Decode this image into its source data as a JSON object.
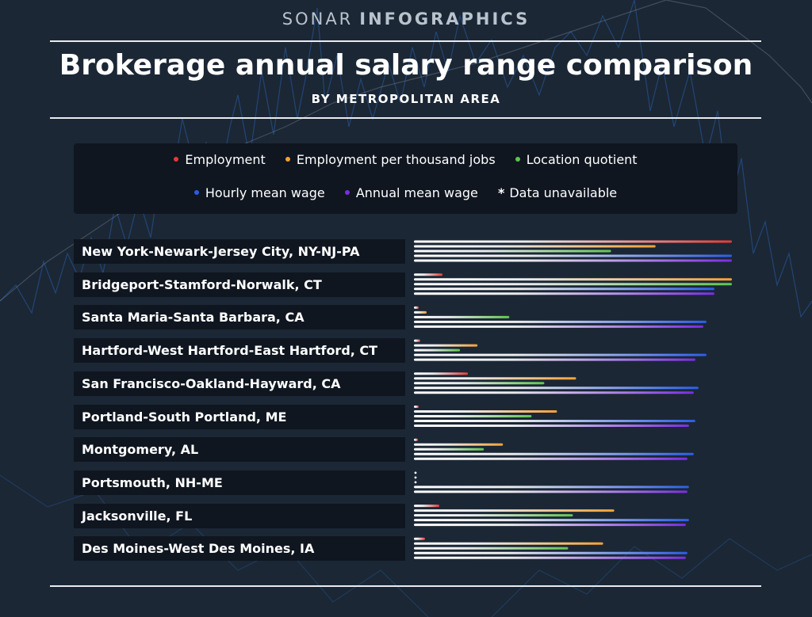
{
  "header": {
    "brand_light": "SONAR",
    "brand_bold": "INFOGRAPHICS",
    "title": "Brokerage annual salary range comparison",
    "subtitle": "BY METROPOLITAN AREA"
  },
  "legend": {
    "row1": [
      {
        "label": "Employment",
        "color": "#e53935"
      },
      {
        "label": "Employment per thousand jobs",
        "color": "#f5a033"
      },
      {
        "label": "Location quotient",
        "color": "#5fc54f"
      }
    ],
    "row2": [
      {
        "label": "Hourly mean wage",
        "color": "#2b5ce6"
      },
      {
        "label": "Annual mean wage",
        "color": "#7a2de0"
      },
      {
        "label": "Data unavailable",
        "star": "*"
      }
    ]
  },
  "chart_data": {
    "type": "bar",
    "orientation": "horizontal",
    "title": "Brokerage annual salary range comparison",
    "subtitle": "BY METROPOLITAN AREA",
    "value_scale": "relative share of the largest value per measure (0–1)",
    "categories": [
      "New York-Newark-Jersey City, NY-NJ-PA",
      "Bridgeport-Stamford-Norwalk, CT",
      "Santa Maria-Santa Barbara, CA",
      "Hartford-West Hartford-East Hartford, CT",
      "San Francisco-Oakland-Hayward, CA",
      "Portland-South Portland, ME",
      "Montgomery, AL",
      "Portsmouth, NH-ME",
      "Jacksonville, FL",
      "Des Moines-West Des Moines, IA"
    ],
    "series": [
      {
        "name": "Employment",
        "color": "#e53935",
        "values": [
          1.0,
          0.09,
          0.015,
          0.02,
          0.17,
          0.015,
          0.01,
          null,
          0.08,
          0.035
        ]
      },
      {
        "name": "Employment per thousand jobs",
        "color": "#f5a033",
        "values": [
          0.76,
          1.0,
          0.04,
          0.2,
          0.51,
          0.45,
          0.28,
          null,
          0.63,
          0.595
        ]
      },
      {
        "name": "Location quotient",
        "color": "#5fc54f",
        "values": [
          0.62,
          1.0,
          0.3,
          0.145,
          0.41,
          0.37,
          0.22,
          null,
          0.5,
          0.485
        ]
      },
      {
        "name": "Hourly mean wage",
        "color": "#2b5ce6",
        "values": [
          1.0,
          0.945,
          0.92,
          0.92,
          0.895,
          0.885,
          0.88,
          0.865,
          0.865,
          0.86
        ]
      },
      {
        "name": "Annual mean wage",
        "color": "#7a2de0",
        "values": [
          1.0,
          0.945,
          0.91,
          0.885,
          0.88,
          0.865,
          0.86,
          0.86,
          0.855,
          0.855
        ]
      }
    ]
  }
}
